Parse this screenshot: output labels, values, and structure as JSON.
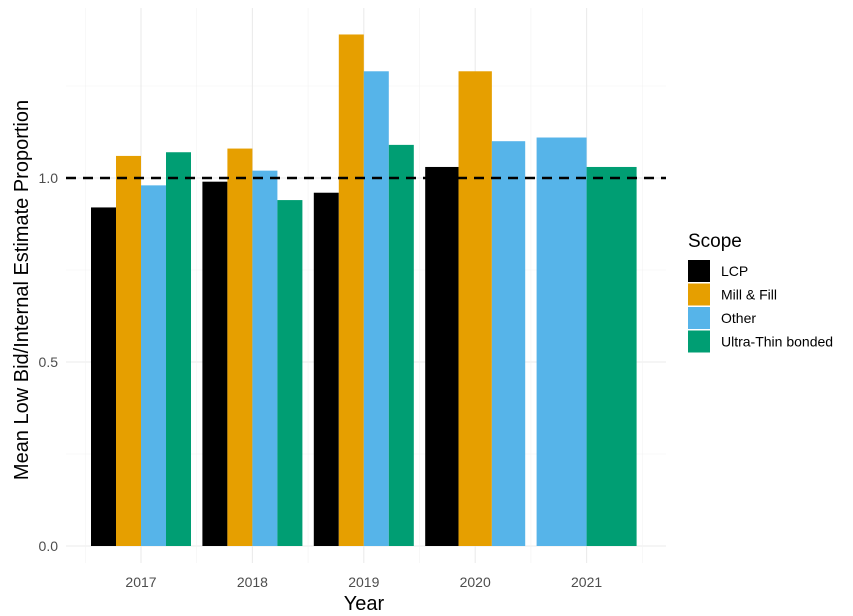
{
  "chart_data": {
    "type": "bar",
    "xlabel": "Year",
    "ylabel": "Mean Low Bid/Internal Estimate Proportion",
    "categories": [
      "2017",
      "2018",
      "2019",
      "2020",
      "2021"
    ],
    "ylim": [
      0,
      1.44
    ],
    "yticks": [
      0.0,
      0.5,
      1.0
    ],
    "ytick_labels": [
      "0.0",
      "0.5",
      "1.0"
    ],
    "reference_line": {
      "y": 1.0,
      "style": "dashed",
      "color": "#000000"
    },
    "grid": true,
    "legend": {
      "title": "Scope",
      "position": "right"
    },
    "series": [
      {
        "name": "LCP",
        "color": "#000000",
        "values": [
          0.92,
          0.99,
          0.96,
          1.03,
          null
        ]
      },
      {
        "name": "Mill & Fill",
        "color": "#E69F00",
        "values": [
          1.06,
          1.08,
          1.39,
          1.29,
          null
        ]
      },
      {
        "name": "Other",
        "color": "#56B4E9",
        "values": [
          0.98,
          1.02,
          1.29,
          1.1,
          1.11
        ]
      },
      {
        "name": "Ultra-Thin bonded",
        "color": "#009E73",
        "values": [
          1.07,
          0.94,
          1.09,
          null,
          1.03
        ]
      }
    ]
  }
}
